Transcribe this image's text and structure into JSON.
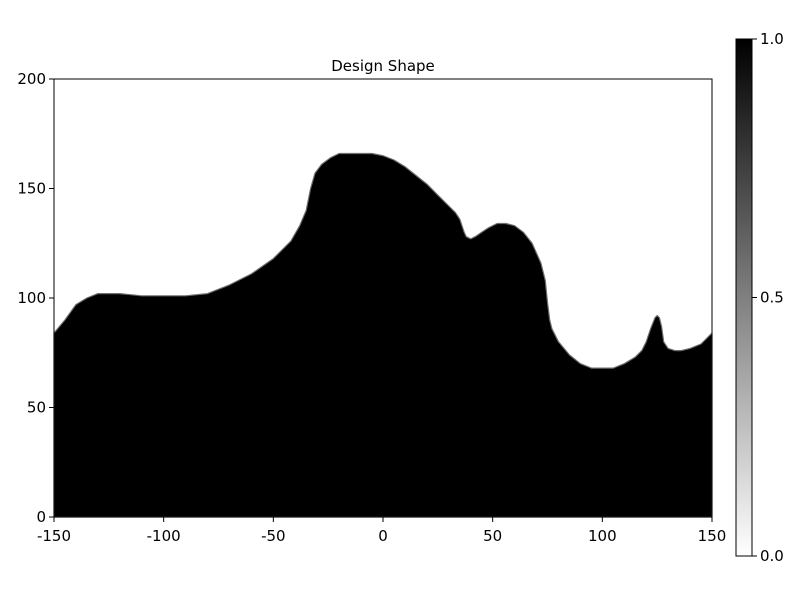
{
  "chart_data": {
    "type": "heatmap",
    "title": "Design Shape",
    "xlabel": "",
    "ylabel": "",
    "xlim": [
      -150,
      150
    ],
    "ylim": [
      0,
      200
    ],
    "x_ticks": [
      -150,
      -100,
      -50,
      0,
      50,
      100,
      150
    ],
    "x_tick_labels": [
      "-150",
      "-100",
      "-50",
      "0",
      "50",
      "100",
      "150"
    ],
    "y_ticks": [
      0,
      50,
      100,
      150,
      200
    ],
    "y_tick_labels": [
      "0",
      "50",
      "100",
      "150",
      "200"
    ],
    "grid": false,
    "colormap": "grays (white = 0.0, black = 1.0)",
    "colorbar": {
      "range": [
        0.0,
        1.0
      ],
      "ticks": [
        0.0,
        0.5,
        1.0
      ],
      "tick_labels": [
        "0.0",
        "0.5",
        "1.0"
      ],
      "placement": "right"
    },
    "shape_boundary": {
      "description_fill_value": 1.0,
      "x": [
        -150,
        -145,
        -140,
        -135,
        -130,
        -125,
        -120,
        -110,
        -100,
        -90,
        -80,
        -70,
        -60,
        -50,
        -42,
        -38,
        -35,
        -33,
        -31,
        -28,
        -24,
        -20,
        -15,
        -10,
        -5,
        0,
        5,
        10,
        15,
        20,
        25,
        30,
        33,
        35,
        36,
        37,
        38,
        40,
        42,
        45,
        48,
        52,
        56,
        60,
        64,
        68,
        72,
        74,
        75,
        76,
        77,
        80,
        85,
        90,
        95,
        100,
        105,
        110,
        115,
        118,
        120,
        122,
        124,
        125,
        126,
        127,
        128,
        130,
        133,
        136,
        140,
        145,
        150
      ],
      "y": [
        84,
        90,
        97,
        100,
        102,
        102,
        102,
        101,
        101,
        101,
        102,
        106,
        111,
        118,
        126,
        133,
        140,
        150,
        157,
        161,
        164,
        166,
        166,
        166,
        166,
        165,
        163,
        160,
        156,
        152,
        147,
        142,
        139,
        136,
        133,
        130,
        128,
        127,
        128,
        130,
        132,
        134,
        134,
        133,
        130,
        125,
        116,
        108,
        98,
        90,
        86,
        80,
        74,
        70,
        68,
        68,
        68,
        70,
        73,
        76,
        80,
        86,
        91,
        92,
        91,
        87,
        80,
        77,
        76,
        76,
        77,
        79,
        84
      ]
    }
  }
}
